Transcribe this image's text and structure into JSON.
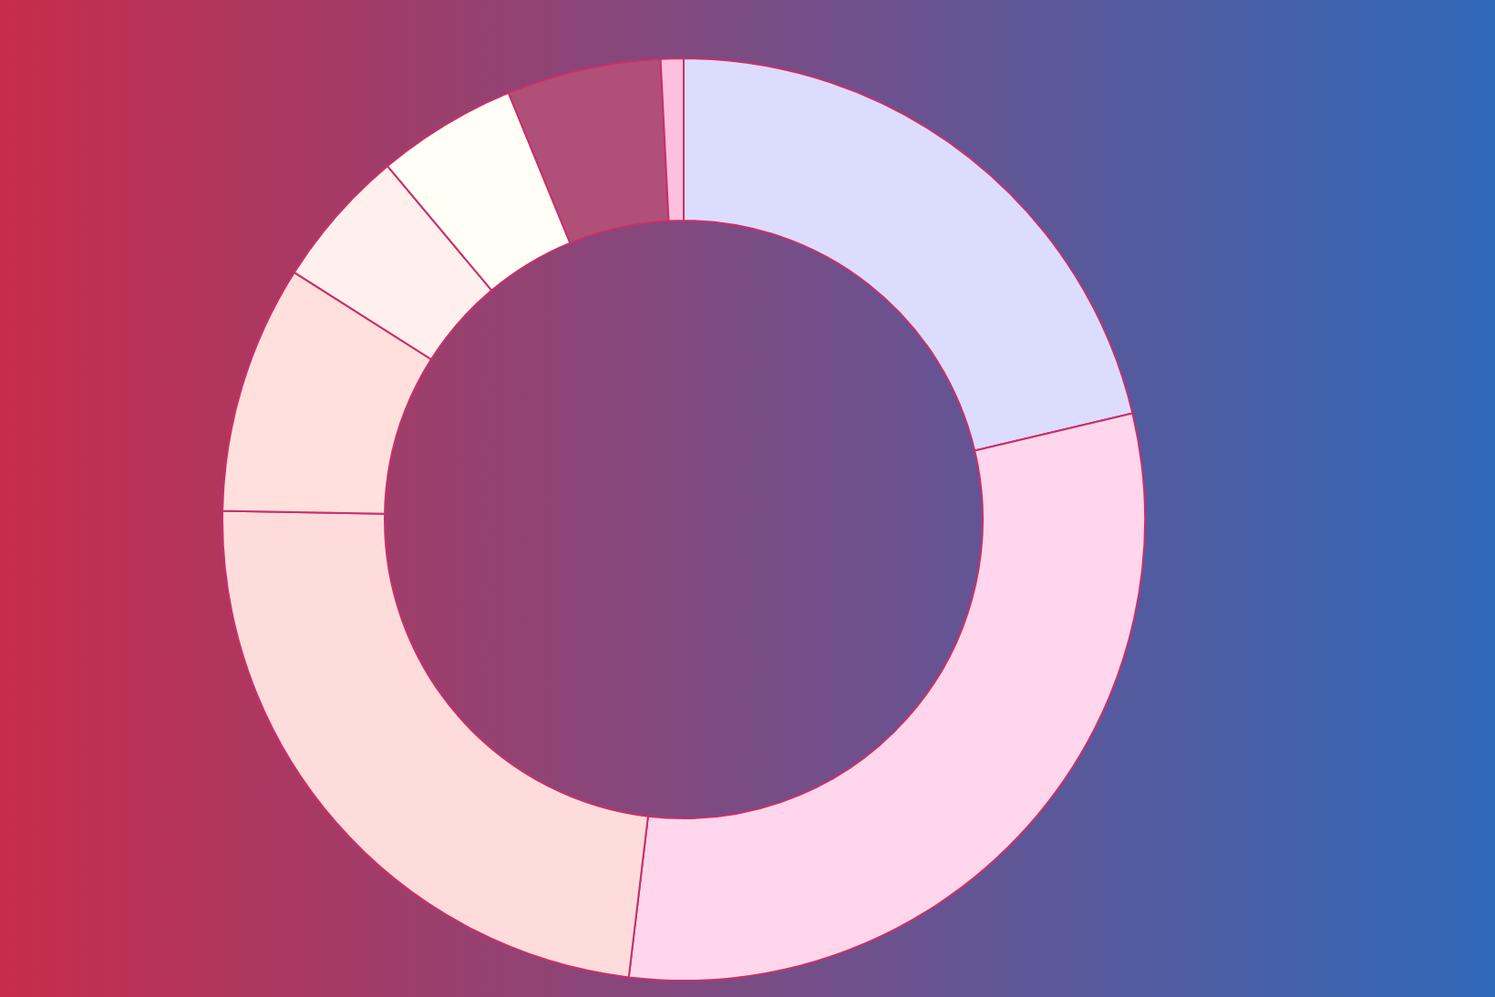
{
  "chart_data": {
    "type": "donut",
    "categories": [
      null,
      null,
      null,
      null,
      null,
      null,
      null,
      null
    ],
    "values": [
      21.3,
      30.6,
      23.4,
      8.7,
      4.9,
      4.9,
      5.4,
      0.8
    ],
    "colors": [
      "#dcdcff",
      "#ffd6ec",
      "#ffdcdc",
      "#ffe0dc",
      "#fff0ee",
      "#fffff5",
      "#b05078",
      "#ffc0e0"
    ]
  }
}
